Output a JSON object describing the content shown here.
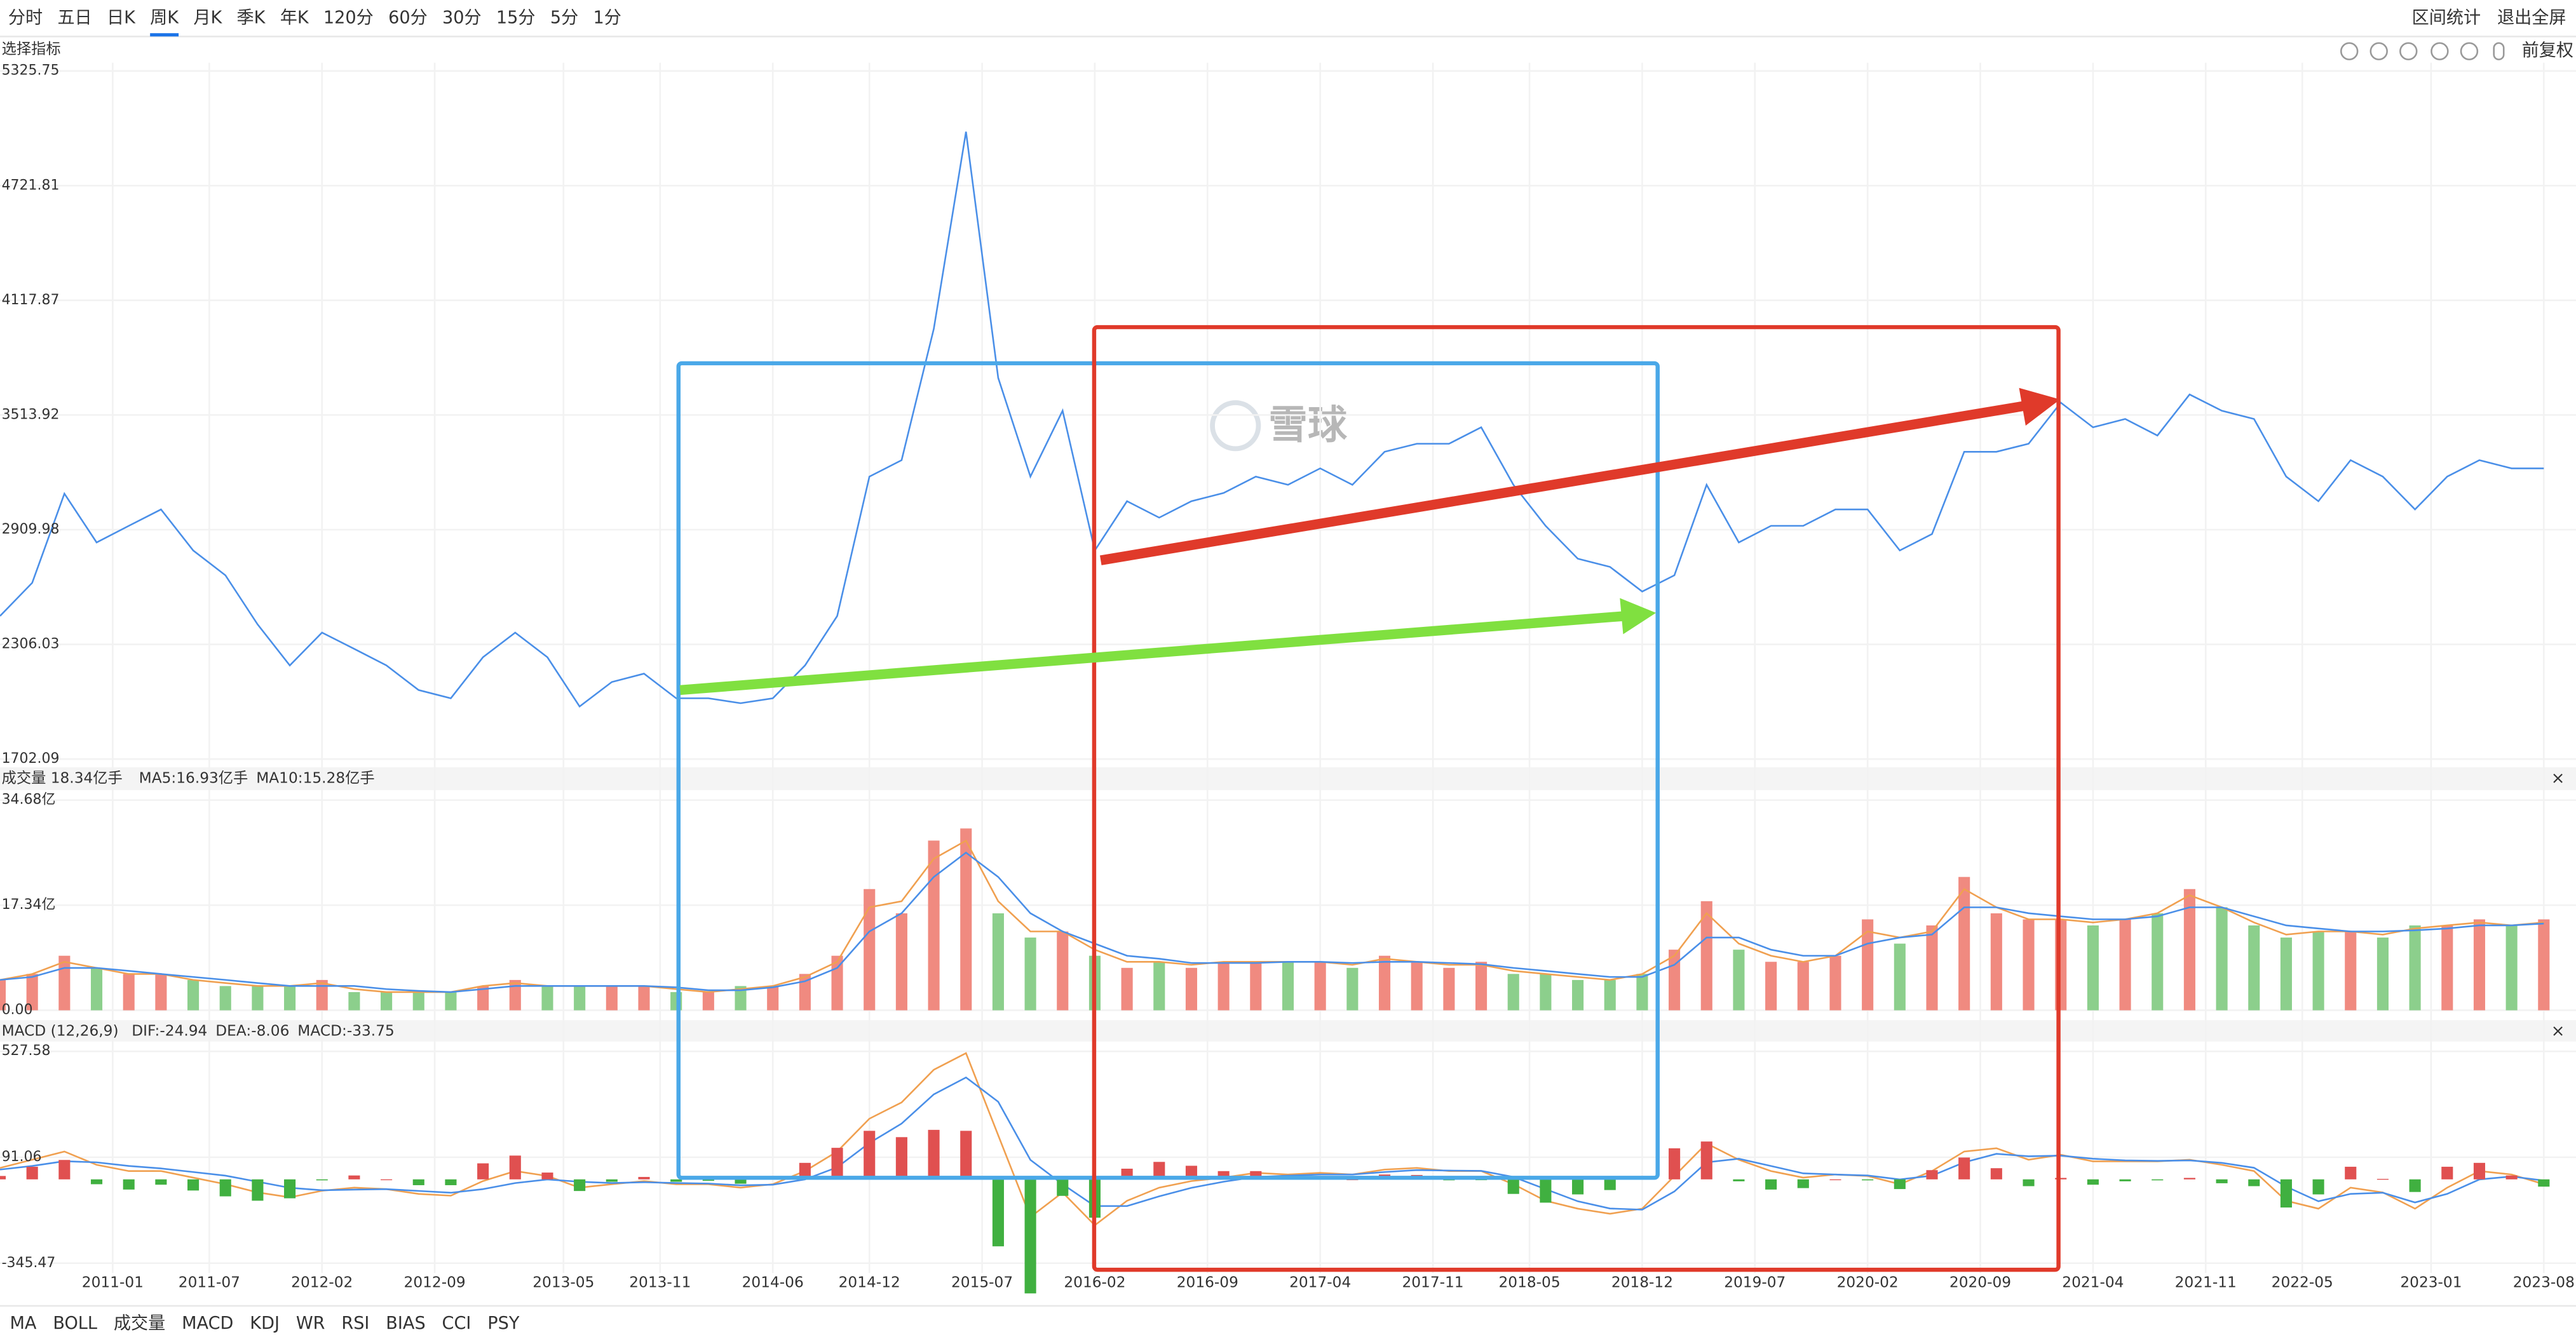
{
  "toolbar": {
    "periods": [
      "分时",
      "五日",
      "日K",
      "周K",
      "月K",
      "季K",
      "年K",
      "120分",
      "60分",
      "30分",
      "15分",
      "5分",
      "1分"
    ],
    "active": 3,
    "actions": [
      "区间统计",
      "退出全屏"
    ]
  },
  "indicator_label": "选择指标",
  "adjust": "前复权",
  "watermark": "雪球",
  "bottom_tabs": {
    "items": [
      "MA",
      "BOLL",
      "成交量",
      "MACD",
      "KDJ",
      "WR",
      "RSI",
      "BIAS",
      "CCI",
      "PSY"
    ],
    "active": [
      0,
      2,
      3
    ]
  },
  "chart_data": [
    {
      "type": "line",
      "color": "#4a8fe8",
      "ylim": [
        1702.09,
        5325.75
      ],
      "yticks": [
        5325.75,
        4721.81,
        4117.87,
        3513.92,
        2909.98,
        2306.03,
        1702.09
      ],
      "values": [
        2455,
        2630,
        3100,
        2843,
        2930,
        3017,
        2800,
        2670,
        2411,
        2195,
        2368,
        2282,
        2195,
        2065,
        2022,
        2238,
        2368,
        2238,
        1979,
        2108,
        2152,
        2022,
        2022,
        1996,
        2022,
        2195,
        2455,
        3190,
        3276,
        3968,
        5006,
        3709,
        3190,
        3536,
        2800,
        3060,
        2973,
        3060,
        3103,
        3190,
        3146,
        3233,
        3146,
        3320,
        3363,
        3363,
        3449,
        3146,
        2930,
        2757,
        2714,
        2584,
        2670,
        3146,
        2843,
        2930,
        2930,
        3017,
        3017,
        2800,
        2887,
        3320,
        3320,
        3363,
        3579,
        3449,
        3493,
        3406,
        3622,
        3536,
        3493,
        3190,
        3060,
        3276,
        3190,
        3017,
        3190,
        3276,
        3233,
        3233
      ]
    },
    {
      "type": "bar",
      "ylim": [
        0,
        34.68
      ],
      "yticks": [
        {
          "value": 34.68,
          "label": "34.68亿"
        },
        {
          "value": 17.34,
          "label": "17.34亿"
        },
        {
          "value": 0,
          "label": "0.00"
        }
      ],
      "series": [
        {
          "name": "成交量 18.34亿手",
          "type": "bar",
          "color": "#333333",
          "up_color": "#f08a80",
          "down_color": "#8ccf8c",
          "values": [
            5,
            6,
            9,
            7,
            6,
            6,
            5,
            4,
            4,
            4,
            5,
            3,
            3,
            3,
            3,
            4,
            5,
            4,
            4,
            4,
            4,
            3,
            3,
            4,
            4,
            6,
            9,
            20,
            16,
            28,
            30,
            16,
            12,
            13,
            9,
            7,
            8,
            7,
            8,
            8,
            8,
            8,
            7,
            9,
            8,
            7,
            8,
            6,
            6,
            5,
            5,
            6,
            10,
            18,
            10,
            8,
            8,
            9,
            15,
            11,
            14,
            22,
            16,
            15,
            15,
            14,
            15,
            16,
            20,
            17,
            14,
            12,
            13,
            13,
            12,
            14,
            14,
            15,
            14,
            15
          ]
        },
        {
          "name": "MA5:16.93亿手",
          "type": "line",
          "color": "#f0a050",
          "values": [
            5,
            6,
            8,
            7,
            6,
            6,
            5,
            4.5,
            4,
            4,
            4.5,
            3.5,
            3,
            3,
            3,
            4,
            4.5,
            4,
            4,
            4,
            4,
            3.5,
            3,
            3.5,
            4,
            5.5,
            8,
            17,
            18,
            25,
            28,
            18,
            13,
            13,
            10,
            8,
            8,
            7.5,
            8,
            8,
            8,
            8,
            7.5,
            8.5,
            8,
            7.5,
            7.5,
            6.5,
            6,
            5.5,
            5,
            6,
            9,
            16,
            11,
            9,
            8,
            9,
            13,
            12,
            13,
            20,
            17,
            15,
            15,
            14.5,
            15,
            16,
            19,
            17,
            14.5,
            12.5,
            13,
            13,
            12.5,
            13.5,
            14,
            14.5,
            14,
            14.5
          ]
        },
        {
          "name": "MA10:15.28亿手",
          "type": "line",
          "color": "#4a8fe8",
          "values": [
            5,
            5.5,
            7,
            7,
            6.5,
            6,
            5.5,
            5,
            4.5,
            4,
            4,
            4,
            3.5,
            3.2,
            3,
            3.5,
            4,
            4,
            4,
            4,
            4,
            3.8,
            3.3,
            3.3,
            3.8,
            4.8,
            7,
            13,
            16,
            22,
            26,
            22,
            16,
            13,
            11,
            9,
            8.5,
            7.8,
            7.8,
            7.8,
            8,
            8,
            7.8,
            8,
            8,
            7.8,
            7.6,
            7,
            6.5,
            6,
            5.5,
            5.5,
            7.5,
            12,
            12,
            10,
            9,
            9,
            11,
            12,
            12.5,
            17,
            17,
            16,
            15.5,
            15,
            15,
            15.5,
            17,
            17,
            15.5,
            14,
            13.5,
            13,
            13,
            13.2,
            13.5,
            14,
            14,
            14.3
          ]
        }
      ]
    },
    {
      "type": "bar",
      "title": "MACD (12,26,9)",
      "ylim": [
        -345.47,
        527.58
      ],
      "yticks": [
        527.58,
        91.06,
        -345.47
      ],
      "xlim": [
        0,
        80
      ],
      "xticks": [
        {
          "value": 3.5,
          "label": "2011-01"
        },
        {
          "value": 6.5,
          "label": "2011-07"
        },
        {
          "value": 10,
          "label": "2012-02"
        },
        {
          "value": 13.5,
          "label": "2012-09"
        },
        {
          "value": 17.5,
          "label": "2013-05"
        },
        {
          "value": 20.5,
          "label": "2013-11"
        },
        {
          "value": 24,
          "label": "2014-06"
        },
        {
          "value": 27,
          "label": "2014-12"
        },
        {
          "value": 30.5,
          "label": "2015-07"
        },
        {
          "value": 34,
          "label": "2016-02"
        },
        {
          "value": 37.5,
          "label": "2016-09"
        },
        {
          "value": 41,
          "label": "2017-04"
        },
        {
          "value": 44.5,
          "label": "2017-11"
        },
        {
          "value": 47.5,
          "label": "2018-05"
        },
        {
          "value": 51,
          "label": "2018-12"
        },
        {
          "value": 54.5,
          "label": "2019-07"
        },
        {
          "value": 58,
          "label": "2020-02"
        },
        {
          "value": 61.5,
          "label": "2020-09"
        },
        {
          "value": 65,
          "label": "2021-04"
        },
        {
          "value": 68.5,
          "label": "2021-11"
        },
        {
          "value": 71.5,
          "label": "2022-05"
        },
        {
          "value": 75.5,
          "label": "2023-01"
        },
        {
          "value": 79,
          "label": "2023-08"
        }
      ],
      "series": [
        {
          "name": "DIF:-24.94",
          "type": "line",
          "color": "#f0a050",
          "values": [
            47,
            81,
            115,
            60,
            34,
            34,
            7,
            -20,
            -54,
            -74,
            -47,
            -34,
            -40,
            -60,
            -67,
            -7,
            34,
            14,
            -34,
            -20,
            -7,
            -20,
            -20,
            -34,
            -20,
            34,
            115,
            250,
            317,
            452,
            520,
            182,
            -155,
            -54,
            -189,
            -88,
            -34,
            -7,
            7,
            27,
            20,
            27,
            20,
            40,
            47,
            34,
            34,
            -20,
            -88,
            -121,
            -142,
            -121,
            14,
            148,
            81,
            34,
            7,
            20,
            14,
            -20,
            34,
            115,
            128,
            81,
            101,
            74,
            74,
            74,
            81,
            60,
            34,
            -88,
            -121,
            -34,
            -54,
            -121,
            -34,
            34,
            20,
            -20
          ]
        },
        {
          "name": "DEA:-8.06",
          "type": "line",
          "color": "#4a8fe8",
          "values": [
            40,
            55,
            75,
            70,
            55,
            45,
            30,
            15,
            -10,
            -35,
            -45,
            -42,
            -40,
            -48,
            -55,
            -40,
            -15,
            0,
            -10,
            -15,
            -12,
            -15,
            -17,
            -25,
            -22,
            0,
            50,
            150,
            230,
            350,
            420,
            320,
            80,
            -20,
            -110,
            -110,
            -70,
            -35,
            -10,
            10,
            15,
            20,
            20,
            30,
            38,
            36,
            35,
            10,
            -40,
            -90,
            -120,
            -125,
            -50,
            70,
            85,
            55,
            25,
            20,
            16,
            0,
            15,
            70,
            105,
            95,
            98,
            85,
            78,
            76,
            78,
            68,
            48,
            -30,
            -90,
            -60,
            -55,
            -95,
            -60,
            0,
            12,
            -5
          ]
        },
        {
          "name": "MACD:-33.75",
          "type": "bar",
          "color": "#3aa03a",
          "up_color": "#e05050",
          "down_color": "#40b040",
          "values": [
            14,
            52,
            80,
            -20,
            -42,
            -22,
            -46,
            -70,
            -88,
            -78,
            -4,
            16,
            0,
            -24,
            -24,
            66,
            98,
            28,
            -48,
            -10,
            10,
            -10,
            -6,
            -18,
            4,
            68,
            130,
            200,
            174,
            204,
            200,
            -276,
            -470,
            -68,
            -158,
            44,
            72,
            56,
            34,
            34,
            10,
            14,
            0,
            20,
            18,
            -4,
            -2,
            -60,
            -96,
            -62,
            -44,
            8,
            128,
            156,
            -8,
            -42,
            -36,
            0,
            -4,
            -40,
            38,
            90,
            46,
            -28,
            6,
            -22,
            -8,
            -4,
            6,
            -16,
            -28,
            -116,
            -62,
            52,
            2,
            -52,
            52,
            68,
            16,
            -30
          ]
        }
      ]
    }
  ]
}
